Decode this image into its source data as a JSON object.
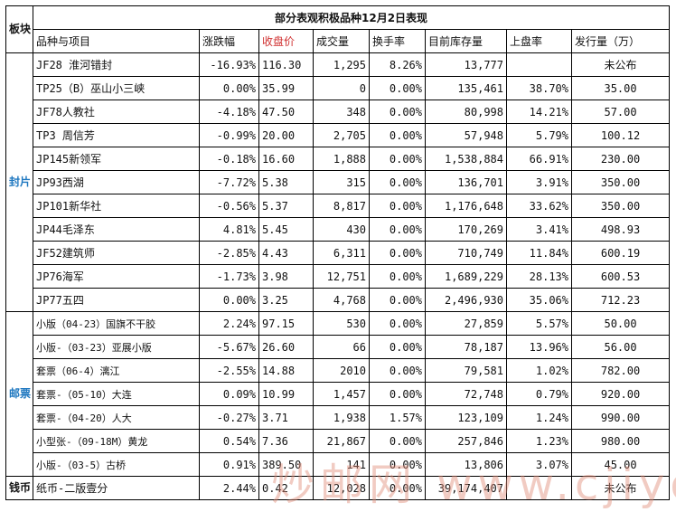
{
  "title": "部分表观积极品种12月2日表现",
  "corner": "板块",
  "headers": [
    "品种与项目",
    "涨跌幅",
    "收盘价",
    "成交量",
    "换手率",
    "目前库存量",
    "上盘率",
    "发行量（万）"
  ],
  "sections": [
    {
      "label": "封片",
      "color": "#1f78c0"
    },
    {
      "label": "邮票",
      "color": "#1f78c0"
    },
    {
      "label": "钱币",
      "color": "#000000"
    }
  ],
  "rows": [
    {
      "name": "JF28 淮河错封",
      "change": "-16.93%",
      "close": "116.30",
      "volume": "1,295",
      "turnover": "8.26%",
      "inventory": "13,777",
      "listing": "",
      "issue": "未公布",
      "trend": "neg"
    },
    {
      "name": "TP25（B）巫山小三峡",
      "change": "0.00%",
      "close": "35.99",
      "volume": "0",
      "turnover": "0.00%",
      "inventory": "135,461",
      "listing": "38.70%",
      "issue": "35.00",
      "trend": "neu"
    },
    {
      "name": "JF78人教社",
      "change": "-4.18%",
      "close": "47.50",
      "volume": "348",
      "turnover": "0.00%",
      "inventory": "80,998",
      "listing": "14.21%",
      "issue": "57.00",
      "trend": "neg"
    },
    {
      "name": "TP3 周信芳",
      "change": "-0.99%",
      "close": "20.00",
      "volume": "2,705",
      "turnover": "0.00%",
      "inventory": "57,948",
      "listing": "5.79%",
      "issue": "100.12",
      "trend": "neg"
    },
    {
      "name": "JP145新领军",
      "change": "-0.18%",
      "close": "16.60",
      "volume": "1,888",
      "turnover": "0.00%",
      "inventory": "1,538,884",
      "listing": "66.91%",
      "issue": "230.00",
      "trend": "neg"
    },
    {
      "name": "JP93西湖",
      "change": "-7.72%",
      "close": "5.38",
      "volume": "315",
      "turnover": "0.00%",
      "inventory": "136,701",
      "listing": "3.91%",
      "issue": "350.00",
      "trend": "neg"
    },
    {
      "name": "JP101新华社",
      "change": "-0.56%",
      "close": "5.37",
      "volume": "8,817",
      "turnover": "0.00%",
      "inventory": "1,176,648",
      "listing": "33.62%",
      "issue": "350.00",
      "trend": "neg"
    },
    {
      "name": "JP44毛泽东",
      "change": "4.81%",
      "close": "5.45",
      "volume": "430",
      "turnover": "0.00%",
      "inventory": "170,269",
      "listing": "3.41%",
      "issue": "498.93",
      "trend": "pos"
    },
    {
      "name": "JF52建筑师",
      "change": "-2.85%",
      "close": "4.43",
      "volume": "6,311",
      "turnover": "0.00%",
      "inventory": "710,749",
      "listing": "11.84%",
      "issue": "600.19",
      "trend": "neg"
    },
    {
      "name": "JP76海军",
      "change": "-1.73%",
      "close": "3.98",
      "volume": "12,751",
      "turnover": "0.00%",
      "inventory": "1,689,229",
      "listing": "28.13%",
      "issue": "600.53",
      "trend": "neg"
    },
    {
      "name": "JP77五四",
      "change": "0.00%",
      "close": "3.25",
      "volume": "4,768",
      "turnover": "0.00%",
      "inventory": "2,496,930",
      "listing": "35.06%",
      "issue": "712.23",
      "trend": "pos"
    },
    {
      "name": "小版（04-23）国旗不干胶",
      "change": "2.24%",
      "close": "97.15",
      "volume": "530",
      "turnover": "0.00%",
      "inventory": "27,859",
      "listing": "5.57%",
      "issue": "50.00",
      "trend": "pos"
    },
    {
      "name": "小版-（03-23）亚展小版",
      "change": "-5.67%",
      "close": "26.60",
      "volume": "66",
      "turnover": "0.00%",
      "inventory": "78,187",
      "listing": "13.96%",
      "issue": "56.00",
      "trend": "neg"
    },
    {
      "name": "套票（06-4）漓江",
      "change": "-2.55%",
      "close": "14.88",
      "volume": "2010",
      "turnover": "0.00%",
      "inventory": "79,581",
      "listing": "1.02%",
      "issue": "782.00",
      "trend": "neg"
    },
    {
      "name": "套票-（05-10）大连",
      "change": "0.09%",
      "close": "10.99",
      "volume": "1,457",
      "turnover": "0.00%",
      "inventory": "72,748",
      "listing": "0.79%",
      "issue": "920.00",
      "trend": "pos"
    },
    {
      "name": "套票-（04-20）人大",
      "change": "-0.27%",
      "close": "3.71",
      "volume": "1,938",
      "turnover": "1.57%",
      "inventory": "123,109",
      "listing": "1.24%",
      "issue": "990.00",
      "trend": "neg"
    },
    {
      "name": "小型张-（09-18M）黄龙",
      "change": "0.54%",
      "close": "7.36",
      "volume": "21,867",
      "turnover": "0.00%",
      "inventory": "257,846",
      "listing": "1.23%",
      "issue": "980.00",
      "trend": "pos"
    },
    {
      "name": "小版-（03-5）古桥",
      "change": "0.91%",
      "close": "389.50",
      "volume": "141",
      "turnover": "0.00%",
      "inventory": "13,806",
      "listing": "3.07%",
      "issue": "45.00",
      "trend": "pos"
    },
    {
      "name": "纸币-二版壹分",
      "change": "2.44%",
      "close": "0.42",
      "volume": "12,028",
      "turnover": "0.00%",
      "inventory": "39,174,407",
      "listing": "",
      "issue": "未公布",
      "trend": "pos"
    }
  ],
  "watermark": "炒邮网 www.cjiyou.net"
}
